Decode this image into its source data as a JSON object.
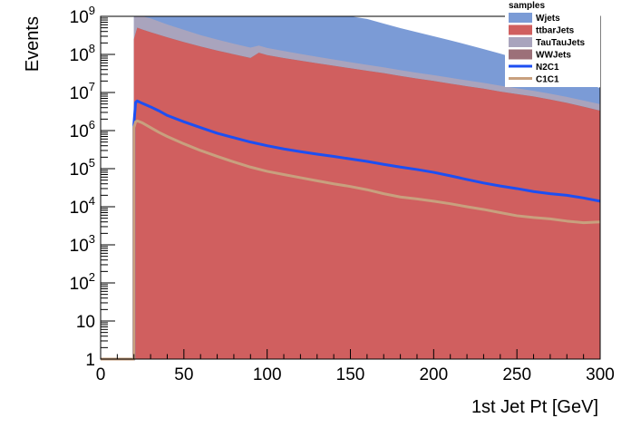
{
  "chart_data": {
    "type": "area",
    "xlabel": "1st Jet Pt [GeV]",
    "ylabel": "Events",
    "xlim": [
      0,
      300
    ],
    "ylim": [
      1,
      1000000000
    ],
    "yscale": "log",
    "x_ticks": [
      0,
      50,
      100,
      150,
      200,
      250,
      300
    ],
    "x_tick_labels": [
      "0",
      "50",
      "100",
      "150",
      "200",
      "250",
      "300"
    ],
    "y_ticks": [
      1,
      10,
      100,
      1000,
      10000,
      100000,
      1000000,
      10000000,
      100000000,
      1000000000
    ],
    "y_tick_labels": [
      {
        "base": "1",
        "exp": ""
      },
      {
        "base": "10",
        "exp": ""
      },
      {
        "base": "10",
        "exp": "2"
      },
      {
        "base": "10",
        "exp": "3"
      },
      {
        "base": "10",
        "exp": "4"
      },
      {
        "base": "10",
        "exp": "5"
      },
      {
        "base": "10",
        "exp": "6"
      },
      {
        "base": "10",
        "exp": "7"
      },
      {
        "base": "10",
        "exp": "8"
      },
      {
        "base": "10",
        "exp": "9"
      }
    ],
    "grid": false,
    "legend": {
      "title": "samples",
      "placement": "top-right",
      "entries": [
        {
          "label": "Wjets",
          "kind": "fill",
          "color": "#7b9bd6"
        },
        {
          "label": "ttbarJets",
          "kind": "fill",
          "color": "#d05f5f"
        },
        {
          "label": "TauTauJets",
          "kind": "fill",
          "color": "#a9a4bd"
        },
        {
          "label": "WWJets",
          "kind": "fill",
          "color": "#9c7079"
        },
        {
          "label": "N2C1",
          "kind": "line",
          "color": "#1d4ff2"
        },
        {
          "label": "C1C1",
          "kind": "line",
          "color": "#c8a07e"
        }
      ]
    },
    "x": [
      20,
      22,
      25,
      30,
      40,
      50,
      60,
      70,
      80,
      90,
      95,
      100,
      110,
      120,
      130,
      140,
      150,
      160,
      170,
      180,
      190,
      200,
      210,
      220,
      230,
      240,
      250,
      260,
      270,
      280,
      290,
      300
    ],
    "stacked_series": [
      {
        "name": "ttbarJets",
        "color": "#d05f5f",
        "values": [
          250000000,
          500000000,
          450000000,
          380000000,
          280000000,
          210000000,
          160000000,
          125000000,
          100000000,
          80000000,
          110000000,
          95000000,
          80000000,
          68000000,
          58000000,
          50000000,
          43000000,
          37000000,
          32000000,
          27000000,
          23000000,
          20000000,
          17000000,
          14500000,
          12500000,
          10500000,
          9000000,
          7800000,
          6500000,
          5300000,
          4200000,
          3300000
        ]
      },
      {
        "name": "WWJets",
        "color": "#9c7079",
        "values": [
          3000000,
          3000000,
          2800000,
          2500000,
          2000000,
          1600000,
          1300000,
          1100000,
          900000,
          750000,
          700000,
          650000,
          550000,
          470000,
          400000,
          340000,
          290000,
          250000,
          210000,
          180000,
          160000,
          140000,
          120000,
          100000,
          90000,
          80000,
          70000,
          60000,
          50000,
          45000,
          40000,
          35000
        ]
      },
      {
        "name": "TauTauJets",
        "color": "#a9a4bd",
        "values": [
          700000000,
          800000000,
          620000000,
          500000000,
          330000000,
          230000000,
          160000000,
          120000000,
          90000000,
          70000000,
          60000000,
          52000000,
          42000000,
          34000000,
          28000000,
          23000000,
          19000000,
          16000000,
          13500000,
          11500000,
          9800000,
          8400000,
          7200000,
          6200000,
          5300000,
          4500000,
          3800000,
          3200000,
          2700000,
          2300000,
          1900000,
          1600000
        ]
      },
      {
        "name": "Wjets",
        "color": "#7b9bd6",
        "values": [
          1000000000,
          1000000000,
          1000000000,
          1000000000,
          1000000000,
          1000000000,
          1000000000,
          1000000000,
          1000000000,
          1000000000,
          1000000000,
          1000000000,
          1000000000,
          1000000000,
          1000000000,
          1000000000,
          1000000000,
          800000000,
          600000000,
          450000000,
          350000000,
          270000000,
          210000000,
          160000000,
          120000000,
          90000000,
          65000000,
          45000000,
          30000000,
          20000000,
          13000000,
          8000000
        ]
      }
    ],
    "line_series": [
      {
        "name": "N2C1",
        "color": "#1d4ff2",
        "x": [
          0,
          20,
          20,
          21,
          22,
          25,
          30,
          35,
          40,
          50,
          60,
          70,
          80,
          90,
          100,
          110,
          120,
          130,
          140,
          150,
          160,
          170,
          180,
          190,
          200,
          210,
          220,
          230,
          240,
          250,
          260,
          270,
          280,
          290,
          300
        ],
        "values": [
          1,
          1,
          1500000,
          5500000,
          6000000,
          5200000,
          4200000,
          3300000,
          2500000,
          1700000,
          1200000,
          850000,
          650000,
          500000,
          400000,
          330000,
          280000,
          240000,
          210000,
          180000,
          155000,
          130000,
          110000,
          95000,
          80000,
          65000,
          52000,
          42000,
          35000,
          30000,
          25000,
          22000,
          20000,
          17000,
          14000
        ]
      },
      {
        "name": "C1C1",
        "color": "#c8a07e",
        "x": [
          0,
          20,
          20,
          21,
          22,
          25,
          30,
          35,
          40,
          50,
          60,
          70,
          80,
          90,
          100,
          110,
          120,
          130,
          140,
          150,
          160,
          170,
          180,
          190,
          200,
          210,
          220,
          230,
          240,
          250,
          260,
          270,
          280,
          290,
          300
        ],
        "values": [
          1,
          1,
          1200000,
          1700000,
          1800000,
          1600000,
          1200000,
          900000,
          700000,
          450000,
          300000,
          210000,
          150000,
          110000,
          85000,
          70000,
          58000,
          48000,
          40000,
          34000,
          28000,
          22000,
          18000,
          16000,
          14000,
          12000,
          10000,
          8500,
          7000,
          5800,
          5200,
          4800,
          4200,
          3800,
          4000
        ]
      }
    ]
  }
}
